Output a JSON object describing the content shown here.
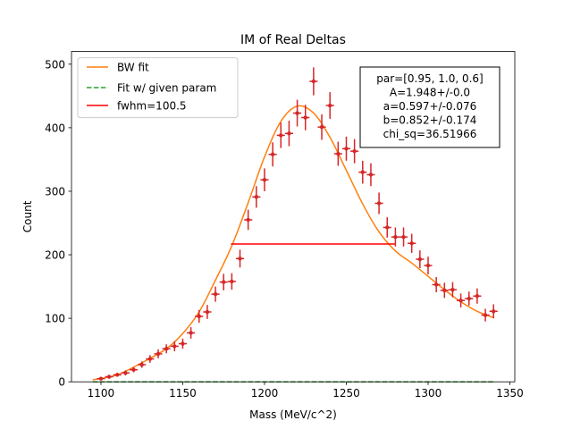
{
  "chart_data": {
    "type": "scatter",
    "title": "IM of Real Deltas",
    "xlabel": "Mass (MeV/c^2)",
    "ylabel": "Count",
    "xlim": [
      1082,
      1353
    ],
    "ylim": [
      0,
      520
    ],
    "xticks": [
      1100,
      1150,
      1200,
      1250,
      1300,
      1350
    ],
    "yticks": [
      0,
      100,
      200,
      300,
      400,
      500
    ],
    "grid": false,
    "legend_position": "top-left",
    "legend": [
      {
        "label": "BW fit",
        "color": "#ff7f0e",
        "style": "solid"
      },
      {
        "label": "Fit w/ given param",
        "color": "#2ca02c",
        "style": "dashed"
      },
      {
        "label": "fwhm=100.5",
        "color": "#ff0000",
        "style": "solid"
      }
    ],
    "annotation": {
      "lines": [
        "par=[0.95, 1.0, 0.6]",
        "A=1.948+/-0.0",
        "a=0.597+/-0.076",
        "b=0.852+/-0.174",
        "chi_sq=36.51966"
      ],
      "position": "top-right"
    },
    "series": [
      {
        "name": "data",
        "color": "#d62728",
        "x": [
          1100,
          1105,
          1110,
          1115,
          1120,
          1125,
          1130,
          1135,
          1140,
          1145,
          1150,
          1155,
          1160,
          1165,
          1170,
          1175,
          1180,
          1185,
          1190,
          1195,
          1200,
          1205,
          1210,
          1215,
          1220,
          1225,
          1230,
          1235,
          1240,
          1245,
          1250,
          1255,
          1260,
          1265,
          1270,
          1275,
          1280,
          1285,
          1290,
          1295,
          1300,
          1305,
          1310,
          1315,
          1320,
          1325,
          1330,
          1335,
          1340
        ],
        "y": [
          5,
          8,
          11,
          14,
          19,
          27,
          36,
          44,
          52,
          56,
          60,
          77,
          103,
          110,
          138,
          157,
          158,
          194,
          255,
          291,
          318,
          358,
          388,
          391,
          423,
          416,
          473,
          401,
          435,
          359,
          367,
          363,
          330,
          326,
          281,
          243,
          228,
          228,
          218,
          193,
          183,
          153,
          144,
          145,
          128,
          131,
          135,
          105,
          111
        ],
        "yerr": [
          2,
          3,
          3,
          4,
          4,
          5,
          6,
          7,
          7,
          8,
          8,
          9,
          10,
          11,
          12,
          13,
          13,
          14,
          16,
          17,
          18,
          19,
          20,
          20,
          21,
          20,
          22,
          20,
          21,
          19,
          19,
          19,
          18,
          18,
          17,
          16,
          15,
          15,
          15,
          14,
          14,
          12,
          12,
          12,
          11,
          11,
          12,
          10,
          11
        ],
        "xerr": 2.5
      },
      {
        "name": "BW fit",
        "color": "#ff7f0e",
        "x": [
          1095,
          1110,
          1125,
          1140,
          1150,
          1160,
          1170,
          1180,
          1190,
          1200,
          1210,
          1220,
          1230,
          1240,
          1250,
          1260,
          1270,
          1280,
          1290,
          1300,
          1310,
          1320,
          1330,
          1340
        ],
        "y": [
          3,
          11,
          30,
          52,
          76,
          110,
          160,
          214,
          282,
          354,
          410,
          434,
          423,
          385,
          333,
          280,
          236,
          206,
          187,
          166,
          145,
          126,
          111,
          101
        ]
      },
      {
        "name": "Fit w/ given param",
        "color": "#2ca02c",
        "x": [
          1095,
          1340
        ],
        "y": [
          0,
          0
        ]
      },
      {
        "name": "fwhm=100.5",
        "color": "#ff0000",
        "x": [
          1179.5,
          1280
        ],
        "y": [
          217,
          217
        ]
      }
    ]
  }
}
